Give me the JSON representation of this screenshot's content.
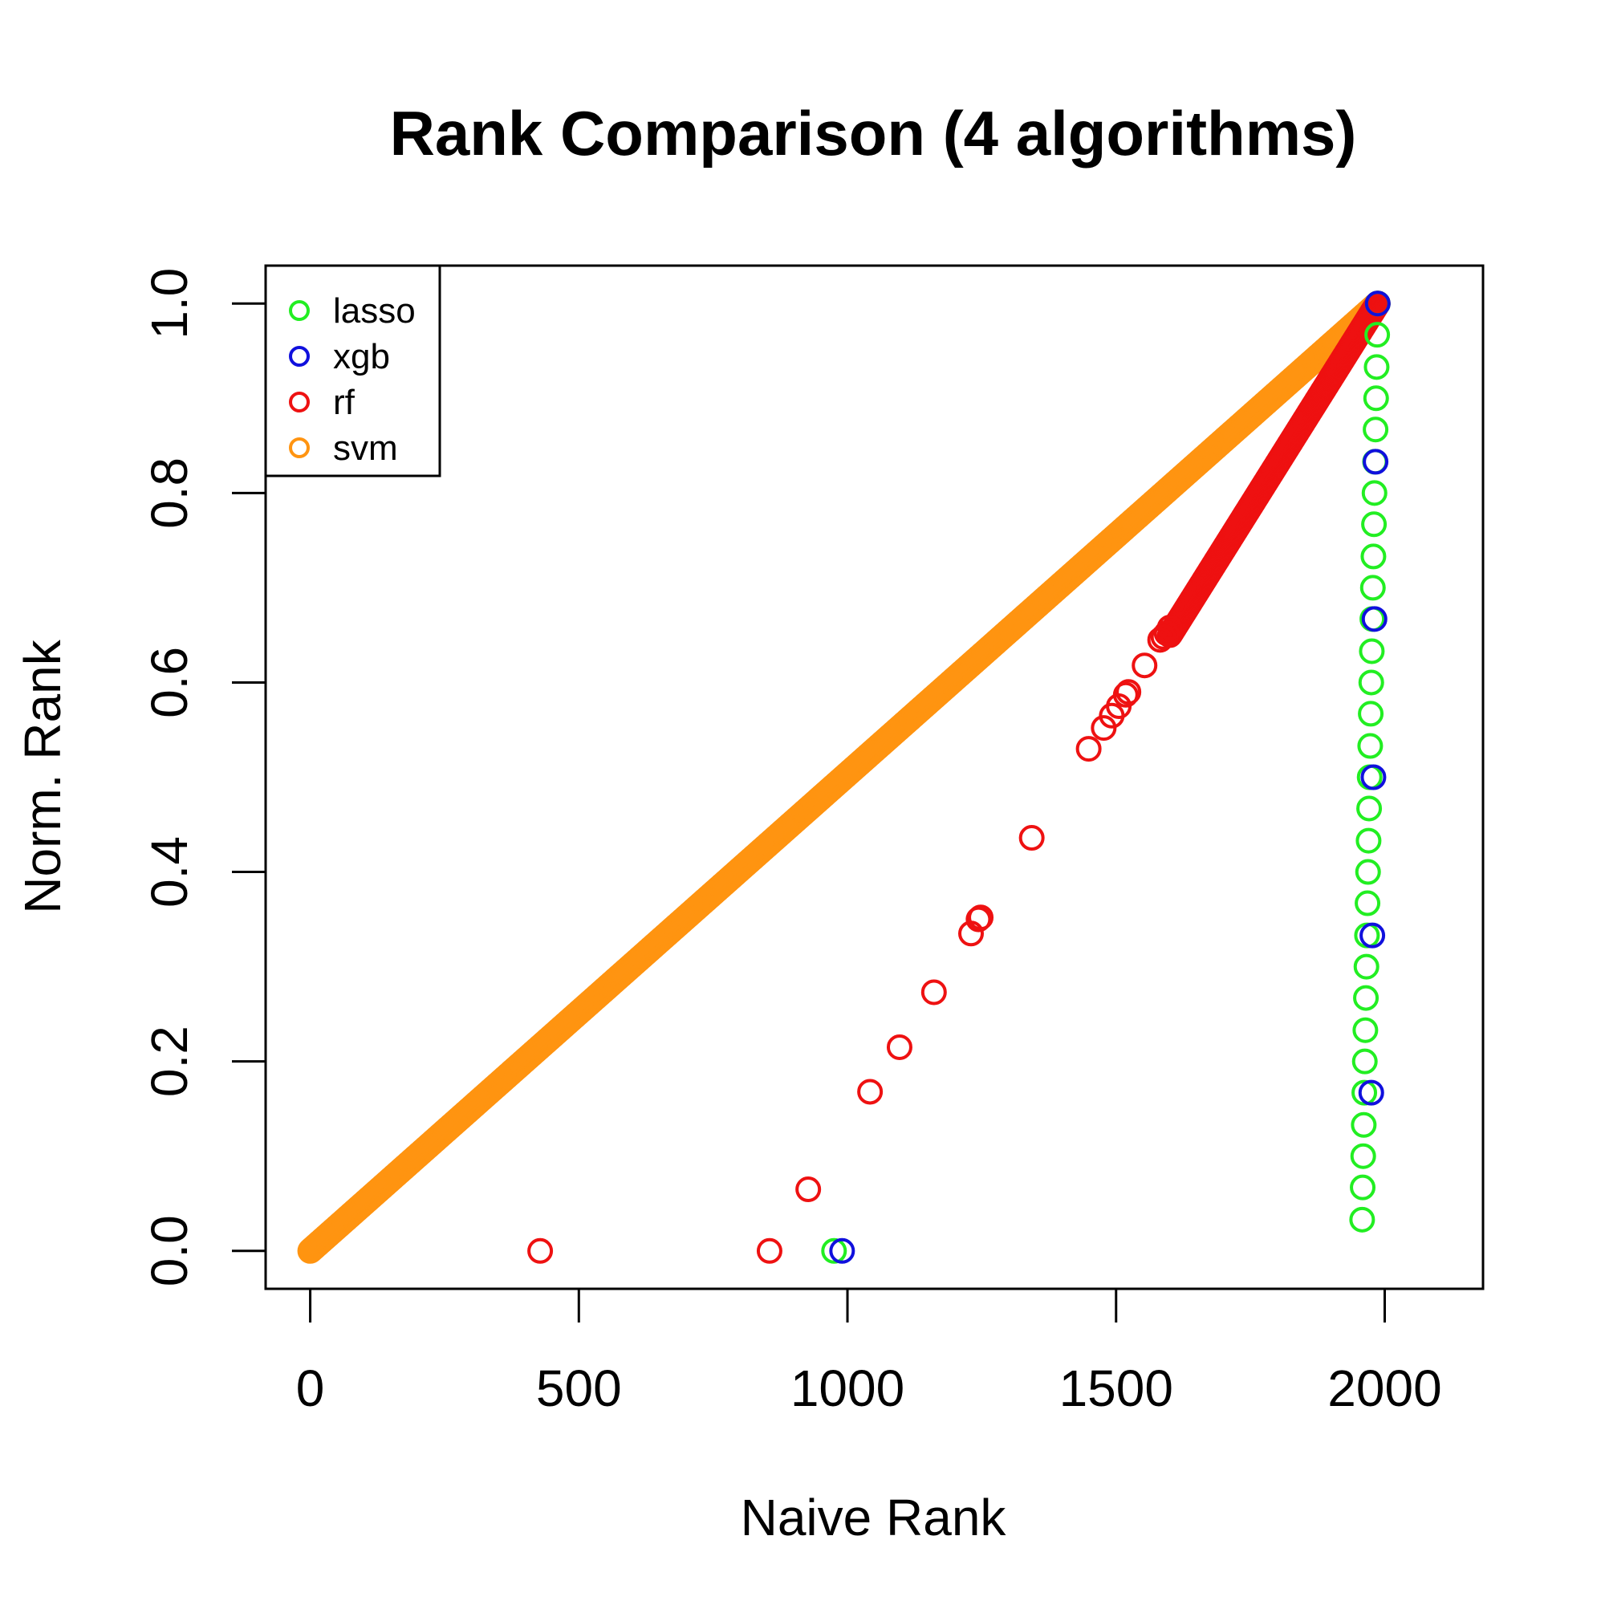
{
  "chart_data": {
    "type": "scatter",
    "title": "Rank Comparison (4 algorithms)",
    "xlabel": "Naive Rank",
    "ylabel": "Norm. Rank",
    "xlim": [
      -83,
      2183
    ],
    "ylim": [
      -0.04,
      1.04
    ],
    "x_ticks": [
      0,
      500,
      1000,
      1500,
      2000
    ],
    "x_tick_labels": [
      "0",
      "500",
      "1000",
      "1500",
      "2000"
    ],
    "y_ticks": [
      0.0,
      0.2,
      0.4,
      0.6,
      0.8,
      1.0
    ],
    "y_tick_labels": [
      "0.0",
      "0.2",
      "0.4",
      "0.6",
      "0.8",
      "1.0"
    ],
    "grid": false,
    "legend_position": "top-left",
    "marker": "open-circle",
    "series": [
      {
        "name": "lasso",
        "color": "#22EE22",
        "points": [
          [
            975,
            0.0
          ],
          [
            1958,
            0.033
          ],
          [
            1959,
            0.067
          ],
          [
            1960,
            0.1
          ],
          [
            1961,
            0.133
          ],
          [
            1962,
            0.167
          ],
          [
            1963,
            0.2
          ],
          [
            1964,
            0.233
          ],
          [
            1965,
            0.267
          ],
          [
            1966,
            0.3
          ],
          [
            1967,
            0.333
          ],
          [
            1968,
            0.367
          ],
          [
            1969,
            0.4
          ],
          [
            1970,
            0.433
          ],
          [
            1971,
            0.467
          ],
          [
            1972,
            0.5
          ],
          [
            1973,
            0.533
          ],
          [
            1974,
            0.567
          ],
          [
            1975,
            0.6
          ],
          [
            1976,
            0.633
          ],
          [
            1977,
            0.667
          ],
          [
            1978,
            0.7
          ],
          [
            1979,
            0.733
          ],
          [
            1980,
            0.767
          ],
          [
            1981,
            0.8
          ],
          [
            1982,
            0.833
          ],
          [
            1983,
            0.867
          ],
          [
            1984,
            0.9
          ],
          [
            1985,
            0.933
          ],
          [
            1986,
            0.967
          ],
          [
            1987,
            1.0
          ]
        ]
      },
      {
        "name": "xgb",
        "color": "#1010DD",
        "points": [
          [
            990,
            0.0
          ],
          [
            1975,
            0.167
          ],
          [
            1977,
            0.333
          ],
          [
            1979,
            0.5
          ],
          [
            1981,
            0.667
          ],
          [
            1983,
            0.833
          ],
          [
            1987,
            1.0
          ]
        ]
      },
      {
        "name": "rf",
        "color": "#EE1111",
        "points": [
          [
            428,
            0.0
          ],
          [
            855,
            0.0
          ],
          [
            927,
            0.065
          ],
          [
            1042,
            0.168
          ],
          [
            1097,
            0.215
          ],
          [
            1161,
            0.273
          ],
          [
            1230,
            0.335
          ],
          [
            1244,
            0.35
          ],
          [
            1248,
            0.352
          ],
          [
            1343,
            0.436
          ],
          [
            1449,
            0.53
          ],
          [
            1477,
            0.552
          ],
          [
            1492,
            0.565
          ],
          [
            1505,
            0.575
          ],
          [
            1518,
            0.587
          ],
          [
            1523,
            0.59
          ],
          [
            1553,
            0.618
          ],
          [
            1582,
            0.645
          ],
          [
            1588,
            0.648
          ],
          [
            1594,
            0.652
          ],
          [
            1600,
            0.658
          ]
        ],
        "dense_segment": {
          "from": [
            1600,
            0.65
          ],
          "to": [
            1987,
            1.0
          ],
          "count": 380
        }
      },
      {
        "name": "svm",
        "color": "#FF9411",
        "dense_segment": {
          "from": [
            0,
            0.0
          ],
          "to": [
            1987,
            1.0
          ],
          "count": 1988
        }
      }
    ]
  }
}
